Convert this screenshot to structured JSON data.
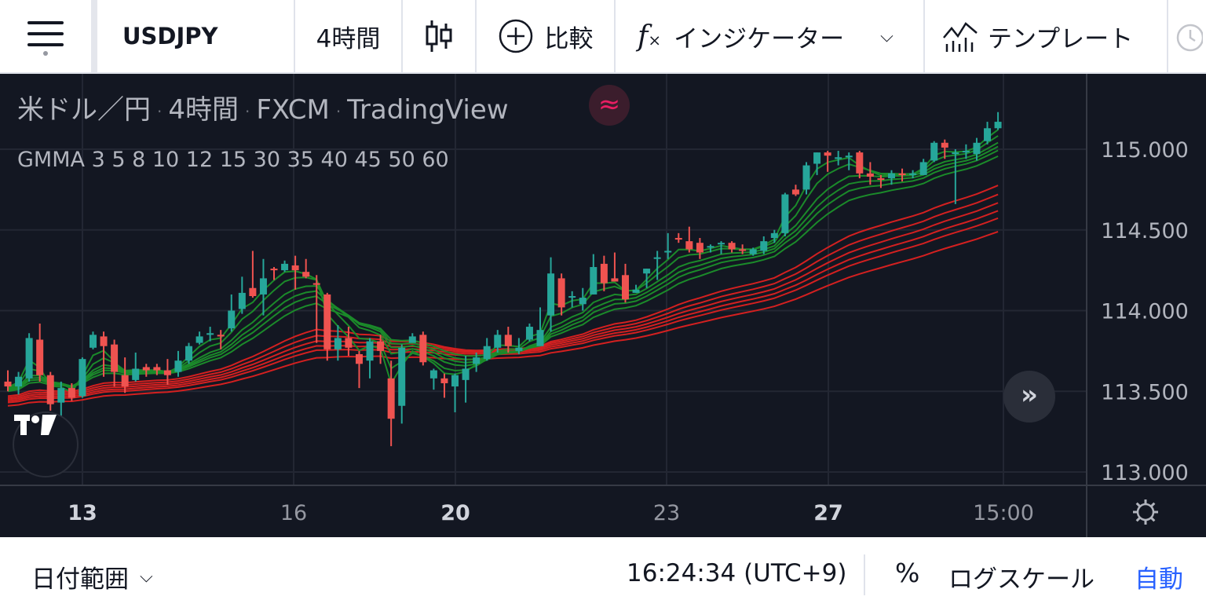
{
  "toolbar": {
    "symbol": "USDJPY",
    "interval": "4時間",
    "compare_label": "比較",
    "indicator_label": "インジケーター",
    "template_label": "テンプレート"
  },
  "legend": {
    "name": "米ドル／円",
    "interval": "4時間",
    "exchange": "FXCM",
    "source": "TradingView",
    "indicator": "GMMA 3 5 8 10 12 15 30 35 40 45 50 60"
  },
  "colors": {
    "background": "#131722",
    "up": "#26a69a",
    "down": "#ef5350",
    "short_ma": "#1b8a2a",
    "long_ma": "#d32020",
    "accent": "#2962ff"
  },
  "bottom": {
    "date_range": "日付範囲",
    "time": "16:24:34 (UTC+9)",
    "percent": "%",
    "log_scale": "ログスケール",
    "auto": "自動"
  },
  "chart_data": {
    "type": "candlestick",
    "ylim": [
      112.97,
      115.45
    ],
    "y_ticks": [
      "115.000",
      "114.500",
      "114.000",
      "113.500",
      "113.000"
    ],
    "x_tick_labels": [
      {
        "label": "13",
        "bold": true
      },
      {
        "label": "16",
        "bold": false
      },
      {
        "label": "20",
        "bold": true
      },
      {
        "label": "23",
        "bold": false
      },
      {
        "label": "27",
        "bold": true
      },
      {
        "label": "15:00",
        "bold": false
      }
    ],
    "candles": [
      [
        113.56,
        113.53,
        113.5,
        113.63
      ],
      [
        113.53,
        113.59,
        113.48,
        113.62
      ],
      [
        113.58,
        113.83,
        113.56,
        113.86
      ],
      [
        113.82,
        113.6,
        113.56,
        113.92
      ],
      [
        113.6,
        113.42,
        113.38,
        113.62
      ],
      [
        113.43,
        113.52,
        113.28,
        113.56
      ],
      [
        113.52,
        113.46,
        113.44,
        113.55
      ],
      [
        113.47,
        113.7,
        113.46,
        113.71
      ],
      [
        113.77,
        113.85,
        113.76,
        113.87
      ],
      [
        113.84,
        113.78,
        113.59,
        113.87
      ],
      [
        113.79,
        113.62,
        113.53,
        113.82
      ],
      [
        113.6,
        113.53,
        113.49,
        113.71
      ],
      [
        113.57,
        113.64,
        113.56,
        113.74
      ],
      [
        113.65,
        113.63,
        113.59,
        113.67
      ],
      [
        113.65,
        113.63,
        113.6,
        113.67
      ],
      [
        113.63,
        113.6,
        113.54,
        113.7
      ],
      [
        113.62,
        113.69,
        113.59,
        113.75
      ],
      [
        113.69,
        113.78,
        113.67,
        113.8
      ],
      [
        113.8,
        113.84,
        113.79,
        113.87
      ],
      [
        113.85,
        113.86,
        113.81,
        113.9
      ],
      [
        113.85,
        113.84,
        113.76,
        113.88
      ],
      [
        113.89,
        114.0,
        113.87,
        114.1
      ],
      [
        114.01,
        114.11,
        113.98,
        114.21
      ],
      [
        114.14,
        114.09,
        114.08,
        114.37
      ],
      [
        114.1,
        114.2,
        113.97,
        114.32
      ],
      [
        114.26,
        114.25,
        114.19,
        114.27
      ],
      [
        114.25,
        114.29,
        114.24,
        114.31
      ],
      [
        114.28,
        114.25,
        114.13,
        114.34
      ],
      [
        114.24,
        114.21,
        114.2,
        114.32
      ],
      [
        114.17,
        114.16,
        113.8,
        114.22
      ],
      [
        114.1,
        113.76,
        113.69,
        114.11
      ],
      [
        113.76,
        113.83,
        113.69,
        113.91
      ],
      [
        113.83,
        113.77,
        113.72,
        113.9
      ],
      [
        113.73,
        113.67,
        113.52,
        113.75
      ],
      [
        113.69,
        113.81,
        113.58,
        113.83
      ],
      [
        113.81,
        113.75,
        113.67,
        113.85
      ],
      [
        113.58,
        113.33,
        113.16,
        113.69
      ],
      [
        113.41,
        113.77,
        113.3,
        113.79
      ],
      [
        113.8,
        113.84,
        113.82,
        113.86
      ],
      [
        113.85,
        113.68,
        113.66,
        113.87
      ],
      [
        113.58,
        113.63,
        113.51,
        113.64
      ],
      [
        113.58,
        113.55,
        113.46,
        113.61
      ],
      [
        113.53,
        113.6,
        113.37,
        113.61
      ],
      [
        113.57,
        113.64,
        113.43,
        113.72
      ],
      [
        113.67,
        113.71,
        113.62,
        113.74
      ],
      [
        113.7,
        113.78,
        113.69,
        113.83
      ],
      [
        113.77,
        113.85,
        113.74,
        113.88
      ],
      [
        113.85,
        113.78,
        113.74,
        113.9
      ],
      [
        113.75,
        113.77,
        113.73,
        113.83
      ],
      [
        113.82,
        113.9,
        113.81,
        113.92
      ],
      [
        113.78,
        113.88,
        113.79,
        114.02
      ],
      [
        113.97,
        114.23,
        113.87,
        114.33
      ],
      [
        114.2,
        114.02,
        113.97,
        114.23
      ],
      [
        114.08,
        114.09,
        114.02,
        114.12
      ],
      [
        114.04,
        114.08,
        114.0,
        114.14
      ],
      [
        114.1,
        114.27,
        114.1,
        114.35
      ],
      [
        114.29,
        114.17,
        114.12,
        114.34
      ],
      [
        114.2,
        114.18,
        114.18,
        114.36
      ],
      [
        114.22,
        114.07,
        114.05,
        114.29
      ],
      [
        114.11,
        114.13,
        114.11,
        114.16
      ],
      [
        114.23,
        114.26,
        114.14,
        114.26
      ],
      [
        114.33,
        114.33,
        114.19,
        114.37
      ],
      [
        114.37,
        114.37,
        114.32,
        114.48
      ],
      [
        114.45,
        114.44,
        114.42,
        114.48
      ],
      [
        114.43,
        114.38,
        114.36,
        114.52
      ],
      [
        114.42,
        114.36,
        114.32,
        114.45
      ],
      [
        114.4,
        114.4,
        114.36,
        114.41
      ],
      [
        114.42,
        114.42,
        114.35,
        114.43
      ],
      [
        114.42,
        114.38,
        114.36,
        114.43
      ],
      [
        114.38,
        114.37,
        114.35,
        114.41
      ],
      [
        114.35,
        114.38,
        114.34,
        114.39
      ],
      [
        114.37,
        114.43,
        114.35,
        114.46
      ],
      [
        114.45,
        114.48,
        114.42,
        114.5
      ],
      [
        114.48,
        114.72,
        114.46,
        114.73
      ],
      [
        114.75,
        114.72,
        114.71,
        114.78
      ],
      [
        114.75,
        114.9,
        114.72,
        114.92
      ],
      [
        114.91,
        114.98,
        114.84,
        114.98
      ],
      [
        114.98,
        114.96,
        114.86,
        114.99
      ],
      [
        114.94,
        114.95,
        114.9,
        114.99
      ],
      [
        114.95,
        114.96,
        114.87,
        114.98
      ],
      [
        114.98,
        114.85,
        114.82,
        114.99
      ],
      [
        114.85,
        114.83,
        114.78,
        114.92
      ],
      [
        114.82,
        114.81,
        114.76,
        114.84
      ],
      [
        114.82,
        114.85,
        114.78,
        114.87
      ],
      [
        114.85,
        114.84,
        114.8,
        114.88
      ],
      [
        114.84,
        114.85,
        114.82,
        114.87
      ],
      [
        114.84,
        114.92,
        114.84,
        114.94
      ],
      [
        114.93,
        115.04,
        114.92,
        115.05
      ],
      [
        115.04,
        115.01,
        114.94,
        115.06
      ],
      [
        114.97,
        114.98,
        114.66,
        115.0
      ],
      [
        114.98,
        114.99,
        114.94,
        115.03
      ],
      [
        114.97,
        115.04,
        114.93,
        115.07
      ],
      [
        115.05,
        115.13,
        115.03,
        115.17
      ],
      [
        115.13,
        115.17,
        115.12,
        115.23
      ]
    ]
  }
}
